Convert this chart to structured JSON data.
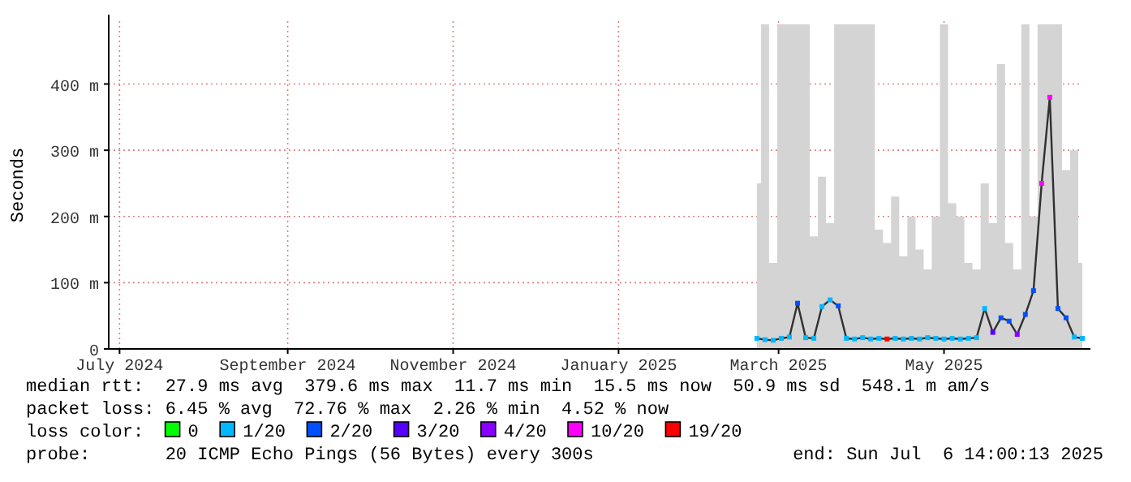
{
  "chart_data": {
    "type": "area",
    "ylabel": "Seconds",
    "legend_title": "loss color:",
    "legend": "bottom",
    "grid": true,
    "xlim": [
      "2024-07-12",
      "2025-07-06"
    ],
    "xticks": [
      {
        "value": "2024-07-16",
        "label": "July 2024"
      },
      {
        "value": "2024-09-16",
        "label": "September 2024"
      },
      {
        "value": "2024-11-16",
        "label": "November 2024"
      },
      {
        "value": "2025-01-16",
        "label": "January 2025"
      },
      {
        "value": "2025-03-16",
        "label": "March 2025"
      },
      {
        "value": "2025-05-16",
        "label": "May 2025"
      }
    ],
    "ylim": [
      0,
      495
    ],
    "yticks": [
      0,
      {
        "value": 100,
        "label": "100 m"
      },
      {
        "value": 200,
        "label": "200 m"
      },
      {
        "value": 300,
        "label": "300 m"
      },
      {
        "value": 400,
        "label": "400 m"
      }
    ],
    "x": [
      "2025-03-08",
      "2025-03-11",
      "2025-03-14",
      "2025-03-17",
      "2025-03-20",
      "2025-03-23",
      "2025-03-26",
      "2025-03-29",
      "2025-04-01",
      "2025-04-04",
      "2025-04-07",
      "2025-04-10",
      "2025-04-13",
      "2025-04-16",
      "2025-04-19",
      "2025-04-22",
      "2025-04-25",
      "2025-04-28",
      "2025-05-01",
      "2025-05-04",
      "2025-05-07",
      "2025-05-10",
      "2025-05-13",
      "2025-05-16",
      "2025-05-19",
      "2025-05-22",
      "2025-05-25",
      "2025-05-28",
      "2025-05-31",
      "2025-06-03",
      "2025-06-06",
      "2025-06-09",
      "2025-06-12",
      "2025-06-15",
      "2025-06-18",
      "2025-06-21",
      "2025-06-24",
      "2025-06-27",
      "2025-06-30",
      "2025-07-03",
      "2025-07-06"
    ],
    "series": [
      {
        "color": "#d4d4d4",
        "values": [
          250,
          490,
          130,
          490,
          490,
          490,
          490,
          170,
          260,
          190,
          490,
          490,
          490,
          490,
          490,
          180,
          160,
          230,
          140,
          200,
          150,
          120,
          200,
          490,
          220,
          200,
          130,
          120,
          250,
          190,
          430,
          160,
          120,
          490,
          200,
          490,
          490,
          490,
          270,
          300,
          130
        ]
      },
      {
        "type": "line",
        "color": "#303030",
        "values": [
          16,
          14,
          13,
          16,
          18,
          69,
          17,
          16,
          64,
          74,
          65,
          16,
          15,
          17,
          15,
          16,
          15,
          16,
          15,
          16,
          15,
          17,
          16,
          15,
          16,
          15,
          16,
          17,
          61,
          25,
          47,
          42,
          22,
          52,
          88,
          250,
          380,
          61,
          47,
          18,
          16
        ]
      },
      {
        "type": "scatter",
        "name": "0",
        "color": "#00ff00",
        "values": [
          null,
          null,
          null,
          null,
          null,
          null,
          null,
          null,
          null,
          null,
          null,
          null,
          null,
          null,
          null,
          null,
          null,
          null,
          null,
          null,
          null,
          null,
          null,
          null,
          null,
          null,
          null,
          null,
          null,
          null,
          null,
          null,
          null,
          null,
          null,
          null,
          null,
          null,
          null,
          null,
          null
        ]
      },
      {
        "type": "scatter",
        "name": "1/20",
        "color": "#00b8ff",
        "x": [
          "2025-03-08",
          "2025-03-11",
          "2025-03-14",
          "2025-03-17",
          "2025-03-20",
          "2025-03-26",
          "2025-03-29",
          "2025-04-01",
          "2025-04-04",
          "2025-04-10",
          "2025-04-13",
          "2025-04-16",
          "2025-04-19",
          "2025-04-22",
          "2025-04-28",
          "2025-05-01",
          "2025-05-04",
          "2025-05-07",
          "2025-05-10",
          "2025-05-13",
          "2025-05-16",
          "2025-05-19",
          "2025-05-22",
          "2025-05-25",
          "2025-05-28",
          "2025-05-31",
          "2025-07-03",
          "2025-07-06"
        ],
        "values": [
          16,
          14,
          13,
          16,
          18,
          17,
          16,
          64,
          74,
          16,
          15,
          17,
          15,
          16,
          16,
          15,
          16,
          15,
          17,
          16,
          15,
          16,
          15,
          16,
          17,
          61,
          18,
          16
        ]
      },
      {
        "type": "scatter",
        "name": "2/20",
        "color": "#0050ff",
        "x": [
          "2025-03-23",
          "2025-04-07",
          "2025-06-06",
          "2025-06-09",
          "2025-06-15",
          "2025-06-18",
          "2025-06-27",
          "2025-06-30"
        ],
        "values": [
          69,
          65,
          47,
          42,
          52,
          88,
          61,
          47
        ]
      },
      {
        "type": "scatter",
        "name": "3/20",
        "color": "#5500ff",
        "x": [
          "2025-06-03"
        ],
        "values": [
          25
        ]
      },
      {
        "type": "scatter",
        "name": "4/20",
        "color": "#8800ff",
        "x": [
          "2025-06-12"
        ],
        "values": [
          22
        ]
      },
      {
        "type": "scatter",
        "name": "10/20",
        "color": "#ff00ff",
        "x": [
          "2025-06-21",
          "2025-06-24"
        ],
        "values": [
          250,
          380
        ]
      },
      {
        "type": "scatter",
        "name": "19/20",
        "color": "#ff0000",
        "x": [
          "2025-04-25"
        ],
        "values": [
          15
        ]
      }
    ],
    "annotations": [
      "median rtt:  27.9 ms avg  379.6 ms max  11.7 ms min  15.5 ms now  50.9 ms sd  548.1 m am/s",
      "packet loss: 6.45 % avg  72.76 % max  2.26 % min  4.52 % now",
      "probe:       20 ICMP Echo Pings (56 Bytes) every 300s",
      "end: Sun Jul  6 14:00:13 2025"
    ]
  }
}
